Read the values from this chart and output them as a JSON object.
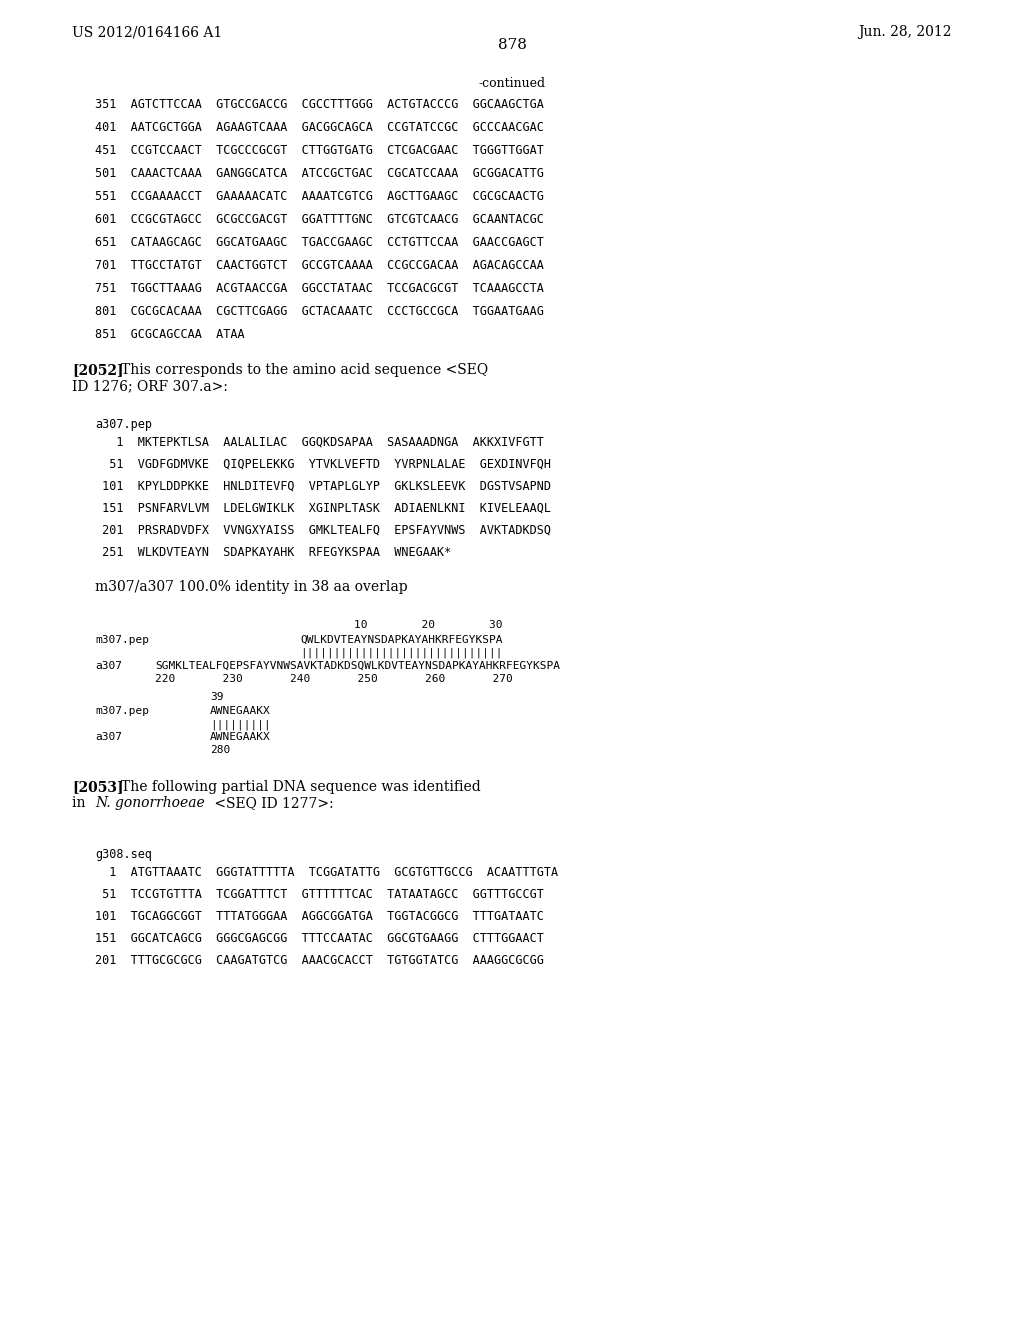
{
  "header_left": "US 2012/0164166 A1",
  "header_right": "Jun. 28, 2012",
  "page_number": "878",
  "background_color": "#ffffff",
  "text_color": "#000000",
  "continued_label": "-continued",
  "dna_sequence_lines": [
    "351  AGTCTTCCAA  GTGCCGACCG  CGCCTTTGGG  ACTGTACCCG  GGCAAGCTGA",
    "401  AATCGCTGGA  AGAAGTCAAA  GACGGCAGCA  CCGTATCCGC  GCCCAACGAC",
    "451  CCGTCCAACT  TCGCCCGCGT  CTTGGTGATG  CTCGACGAAC  TGGGTTGGAT",
    "501  CAAACTCAAA  GANGGCATCA  ATCCGCTGAC  CGCATCCAAA  GCGGACATTG",
    "551  CCGAAAACCT  GAAAAACATC  AAAATCGTCG  AGCTTGAAGC  CGCGCAACTG",
    "601  CCGCGTAGCC  GCGCCGACGT  GGATTTTGNC  GTCGTCAACG  GCAANTACGC",
    "651  CATAAGCAGC  GGCATGAAGC  TGACCGAAGC  CCTGTTCCAA  GAACCGAGCT",
    "701  TTGCCTATGT  CAACTGGTCT  GCCGTCAAAA  CCGCCGACAA  AGACAGCCAA",
    "751  TGGCTTAAAG  ACGTAACCGA  GGCCTATAAC  TCCGACGCGT  TCAAAGCCTA",
    "801  CGCGCACAAA  CGCTTCGAGG  GCTACAAATC  CCCTGCCGCA  TGGAATGAAG",
    "851  GCGCAGCCAA  ATAA"
  ],
  "para2052_bold": "[2052]",
  "para2052_text": "This corresponds to the amino acid sequence <SEQ\nID 1276; ORF 307.a>:",
  "pep_label": "a307.pep",
  "pep_lines": [
    "   1  MKTEPKTLSA  AALALILAC  GGQKDSAPAA  SASAAADNGA  AKKXIVFGTT",
    "  51  VGDFGDMVKE  QIQPELEKKG  YTVKLVEFTD  YVRPNLALAE  GEXDINVFQH",
    " 101  KPYLDDPKKE  HNLDITEVFQ  VPTAPLGLYP  GKLKSLEEVK  DGSTVSAPND",
    " 151  PSNFARVLVM  LDELGWIKLK  XGINPLTASK  ADIAENLKNI  KIVELEAAQL",
    " 201  PRSRADVDFX  VVNGXYAISS  GMKLTEALFQ  EPSFAYVNWS  AVKTADKDSQ",
    " 251  WLKDVTEAYN  SDAPKAYAHK  RFEGYKSPAA  WNEGAAK*"
  ],
  "overlap_label": "m307/a307 100.0% identity in 38 aa overlap",
  "para2053_bold": "[2053]",
  "para2053_text": "The following partial DNA sequence was identified\nin ",
  "para2053_italic": "N. gonorrhoeae",
  "para2053_rest": " <SEQ ID 1277>:",
  "g308_label": "g308.seq",
  "g308_lines": [
    "  1  ATGTTAAATC  GGGTATTTTTA  TCGGATATTG  GCGTGTTGCCG  ACAATTTGTA",
    " 51  TCCGTGTTTA  TCGGATTTCT  GTTTTTTCAC  TATAATAGCC  GGTTTGCCGT",
    "101  TGCAGGCGGT  TTTATGGGAA  AGGCGGATGA  TGGTACGGCG  TTTGATAATC",
    "151  GGCATCAGCG  GGGCGAGCGG  TTTCCAATAC  GGCGTGAAGG  CTTTGGAACT",
    "201  TTTGCGCGCG  CAAGATGTCG  AAACGCACCT  TGTGGTATCG  AAAGGCGCGG"
  ]
}
